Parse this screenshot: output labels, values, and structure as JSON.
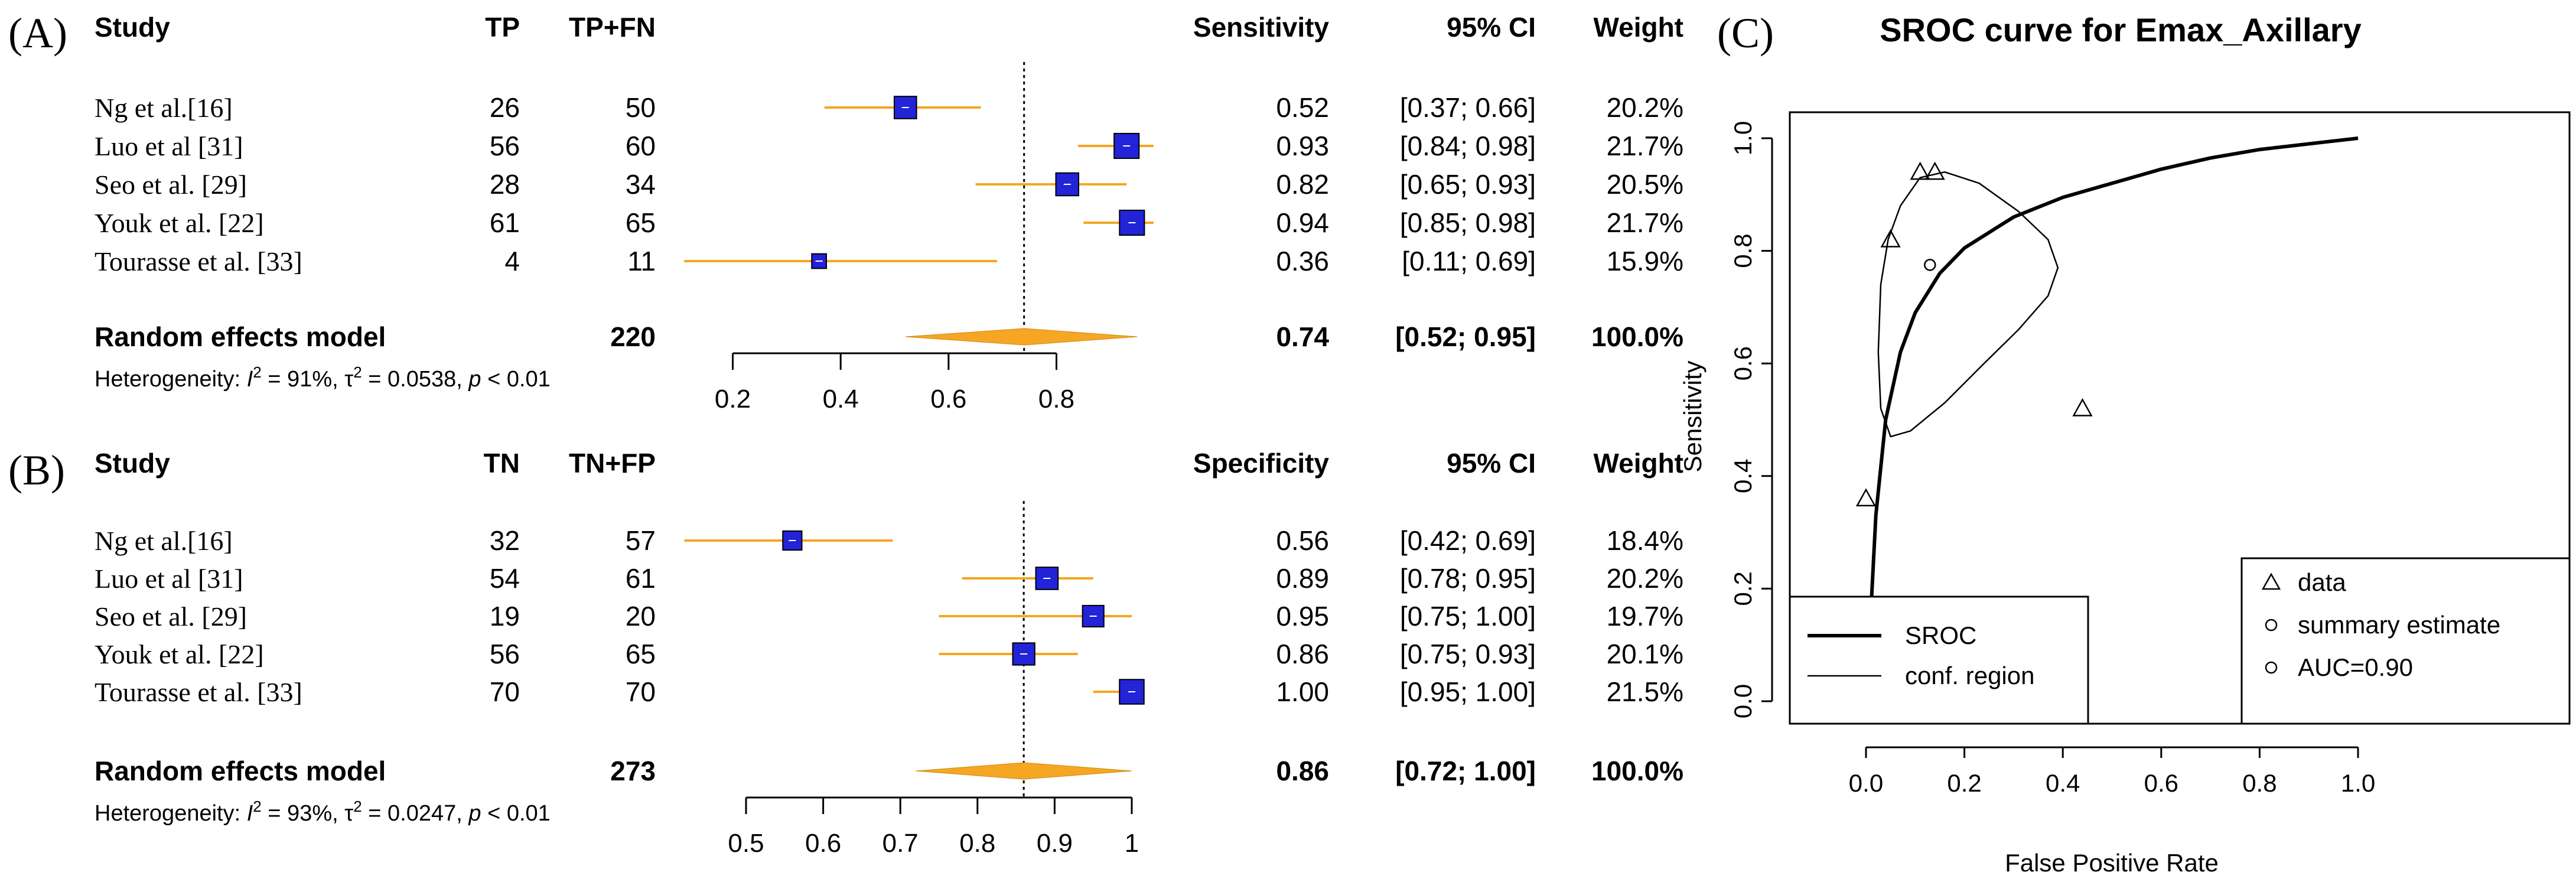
{
  "panels": {
    "A": {
      "label": "(A)",
      "headers": {
        "study": "Study",
        "c1": "TP",
        "c2": "TP+FN",
        "est": "Sensitivity",
        "ci": "95% CI",
        "weight": "Weight"
      },
      "rows": [
        {
          "study": "Ng et al.[16]",
          "c1": "26",
          "c2": "50",
          "est": "0.52",
          "ci": "[0.37; 0.66]",
          "weight": "20.2%",
          "value": 0.52,
          "lo": 0.37,
          "hi": 0.66,
          "w": 20.2
        },
        {
          "study": "Luo et al [31]",
          "c1": "56",
          "c2": "60",
          "est": "0.93",
          "ci": "[0.84; 0.98]",
          "weight": "21.7%",
          "value": 0.93,
          "lo": 0.84,
          "hi": 0.98,
          "w": 21.7
        },
        {
          "study": "Seo et al. [29]",
          "c1": "28",
          "c2": "34",
          "est": "0.82",
          "ci": "[0.65; 0.93]",
          "weight": "20.5%",
          "value": 0.82,
          "lo": 0.65,
          "hi": 0.93,
          "w": 20.5
        },
        {
          "study": "Youk et al. [22]",
          "c1": "61",
          "c2": "65",
          "est": "0.94",
          "ci": "[0.85; 0.98]",
          "weight": "21.7%",
          "value": 0.94,
          "lo": 0.85,
          "hi": 0.98,
          "w": 21.7
        },
        {
          "study": "Tourasse et al. [33]",
          "c1": "4",
          "c2": "11",
          "est": "0.36",
          "ci": "[0.11; 0.69]",
          "weight": "15.9%",
          "value": 0.36,
          "lo": 0.11,
          "hi": 0.69,
          "w": 15.9
        }
      ],
      "pooled": {
        "study": "Random effects model",
        "c2": "220",
        "est": "0.74",
        "ci": "[0.52; 0.95]",
        "weight": "100.0%",
        "value": 0.74,
        "lo": 0.52,
        "hi": 0.95
      },
      "het": {
        "pre": "Heterogeneity: ",
        "i2": "I",
        "sup2": "2",
        "i2val": " = 91%, τ",
        "tsup": "2",
        "tauval": " = 0.0538, ",
        "p": "p",
        "pval": " < 0.01"
      },
      "axis": {
        "ticks": [
          0.2,
          0.4,
          0.6,
          0.8
        ],
        "labels": [
          "0.2",
          "0.4",
          "0.6",
          "0.8"
        ],
        "min": 0.2,
        "max": 0.8
      }
    },
    "B": {
      "label": "(B)",
      "headers": {
        "study": "Study",
        "c1": "TN",
        "c2": "TN+FP",
        "est": "Specificity",
        "ci": "95% CI",
        "weight": "Weight"
      },
      "rows": [
        {
          "study": "Ng et al.[16]",
          "c1": "32",
          "c2": "57",
          "est": "0.56",
          "ci": "[0.42; 0.69]",
          "weight": "18.4%",
          "value": 0.56,
          "lo": 0.42,
          "hi": 0.69,
          "w": 18.4
        },
        {
          "study": "Luo et al [31]",
          "c1": "54",
          "c2": "61",
          "est": "0.89",
          "ci": "[0.78; 0.95]",
          "weight": "20.2%",
          "value": 0.89,
          "lo": 0.78,
          "hi": 0.95,
          "w": 20.2
        },
        {
          "study": "Seo et al. [29]",
          "c1": "19",
          "c2": "20",
          "est": "0.95",
          "ci": "[0.75; 1.00]",
          "weight": "19.7%",
          "value": 0.95,
          "lo": 0.75,
          "hi": 1.0,
          "w": 19.7
        },
        {
          "study": "Youk et al. [22]",
          "c1": "56",
          "c2": "65",
          "est": "0.86",
          "ci": "[0.75; 0.93]",
          "weight": "20.1%",
          "value": 0.86,
          "lo": 0.75,
          "hi": 0.93,
          "w": 20.1
        },
        {
          "study": "Tourasse et al. [33]",
          "c1": "70",
          "c2": "70",
          "est": "1.00",
          "ci": "[0.95; 1.00]",
          "weight": "21.5%",
          "value": 1.0,
          "lo": 0.95,
          "hi": 1.0,
          "w": 21.5
        }
      ],
      "pooled": {
        "study": "Random effects model",
        "c2": "273",
        "est": "0.86",
        "ci": "[0.72; 1.00]",
        "weight": "100.0%",
        "value": 0.86,
        "lo": 0.72,
        "hi": 1.0
      },
      "het": {
        "pre": "Heterogeneity: ",
        "i2": "I",
        "sup2": "2",
        "i2val": " = 93%, τ",
        "tsup": "2",
        "tauval": " = 0.0247, ",
        "p": "p",
        "pval": " < 0.01"
      },
      "axis": {
        "ticks": [
          0.5,
          0.6,
          0.7,
          0.8,
          0.9,
          1.0
        ],
        "labels": [
          "0.5",
          "0.6",
          "0.7",
          "0.8",
          "0.9",
          "1"
        ],
        "min": 0.5,
        "max": 1.0
      }
    }
  },
  "colors": {
    "square": "#2323d8",
    "ci": "#f5a623",
    "diamond": "#f5a623",
    "line": "#000000"
  },
  "chart_data": {
    "type": "line",
    "panel_label": "(C)",
    "title": "SROC curve for Emax_Axillary",
    "xlabel": "False Positive Rate",
    "ylabel": "Sensitivity",
    "xlim": [
      0.0,
      1.0
    ],
    "ylim": [
      0.0,
      1.0
    ],
    "x_ticks": [
      "0.0",
      "0.2",
      "0.4",
      "0.6",
      "0.8",
      "1.0"
    ],
    "y_ticks": [
      "0.0",
      "0.2",
      "0.4",
      "0.6",
      "0.8",
      "1.0"
    ],
    "series": [
      {
        "name": "SROC",
        "kind": "curve",
        "points": [
          [
            0.005,
            0.0
          ],
          [
            0.01,
            0.16
          ],
          [
            0.02,
            0.33
          ],
          [
            0.04,
            0.5
          ],
          [
            0.07,
            0.62
          ],
          [
            0.1,
            0.69
          ],
          [
            0.15,
            0.76
          ],
          [
            0.2,
            0.805
          ],
          [
            0.3,
            0.86
          ],
          [
            0.4,
            0.895
          ],
          [
            0.5,
            0.92
          ],
          [
            0.6,
            0.945
          ],
          [
            0.7,
            0.965
          ],
          [
            0.8,
            0.98
          ],
          [
            0.9,
            0.99
          ],
          [
            1.0,
            1.0
          ]
        ]
      },
      {
        "name": "conf. region",
        "kind": "ellipse",
        "points": [
          [
            0.07,
            0.88
          ],
          [
            0.11,
            0.93
          ],
          [
            0.16,
            0.94
          ],
          [
            0.23,
            0.92
          ],
          [
            0.31,
            0.87
          ],
          [
            0.37,
            0.82
          ],
          [
            0.39,
            0.77
          ],
          [
            0.37,
            0.72
          ],
          [
            0.31,
            0.66
          ],
          [
            0.24,
            0.6
          ],
          [
            0.16,
            0.53
          ],
          [
            0.09,
            0.48
          ],
          [
            0.05,
            0.47
          ],
          [
            0.03,
            0.52
          ],
          [
            0.025,
            0.62
          ],
          [
            0.03,
            0.74
          ],
          [
            0.045,
            0.82
          ],
          [
            0.07,
            0.88
          ]
        ]
      },
      {
        "name": "data",
        "kind": "points",
        "marker": "triangle",
        "points": [
          [
            0.0,
            0.36
          ],
          [
            0.05,
            0.82
          ],
          [
            0.11,
            0.94
          ],
          [
            0.14,
            0.94
          ],
          [
            0.44,
            0.52
          ]
        ]
      },
      {
        "name": "summary estimate",
        "kind": "points",
        "marker": "circle",
        "points": [
          [
            0.13,
            0.775
          ]
        ]
      }
    ],
    "legend_left": {
      "position": "bottom-left",
      "items": [
        {
          "label": "SROC",
          "style": "thick-line"
        },
        {
          "label": "conf. region",
          "style": "thin-line"
        }
      ]
    },
    "legend_right": {
      "position": "bottom-right",
      "items": [
        {
          "label": "data",
          "symbol": "△"
        },
        {
          "label": "summary estimate",
          "symbol": "○"
        },
        {
          "label": "AUC=0.90",
          "symbol": "○"
        }
      ]
    },
    "grid": false
  }
}
